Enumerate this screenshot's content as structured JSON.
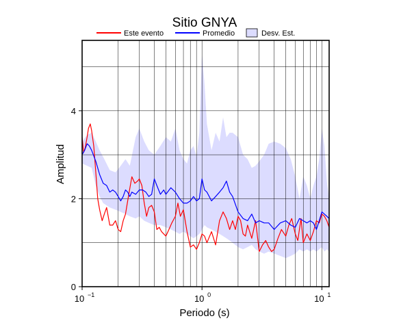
{
  "chart_data": {
    "type": "line",
    "title": "Sitio GNYA",
    "xlabel": "Periodo (s)",
    "ylabel": "Amplitud",
    "xscale": "log",
    "xlim": [
      0.1,
      11.5
    ],
    "ylim": [
      0,
      5.6
    ],
    "x_ticks": [
      {
        "value": 0.1,
        "base": "10",
        "exp": "−1"
      },
      {
        "value": 1,
        "base": "10",
        "exp": "0"
      },
      {
        "value": 10,
        "base": "10",
        "exp": "1"
      }
    ],
    "y_ticks": [
      0,
      2,
      4
    ],
    "grid": true,
    "legend_position": "top",
    "legend": [
      {
        "label": "Este evento",
        "kind": "line",
        "color": "#ff0000"
      },
      {
        "label": "Promedio",
        "kind": "line",
        "color": "#0000ff"
      },
      {
        "label": "Desv. Est.",
        "kind": "band",
        "color": "#dcdcff"
      }
    ],
    "series": [
      {
        "name": "Este evento",
        "color": "#ff0000",
        "x": [
          0.1,
          0.103,
          0.106,
          0.11,
          0.113,
          0.117,
          0.12,
          0.125,
          0.13,
          0.135,
          0.14,
          0.147,
          0.153,
          0.16,
          0.17,
          0.18,
          0.19,
          0.2,
          0.21,
          0.22,
          0.23,
          0.245,
          0.26,
          0.275,
          0.29,
          0.3,
          0.315,
          0.33,
          0.345,
          0.36,
          0.38,
          0.4,
          0.42,
          0.44,
          0.46,
          0.48,
          0.5,
          0.53,
          0.56,
          0.6,
          0.63,
          0.66,
          0.7,
          0.75,
          0.8,
          0.85,
          0.9,
          0.95,
          1.0,
          1.05,
          1.1,
          1.2,
          1.3,
          1.4,
          1.5,
          1.6,
          1.7,
          1.8,
          1.9,
          2.0,
          2.1,
          2.2,
          2.3,
          2.4,
          2.6,
          2.8,
          3.0,
          3.2,
          3.4,
          3.6,
          3.8,
          4.0,
          4.3,
          4.6,
          5.0,
          5.3,
          5.6,
          6.0,
          6.3,
          6.7,
          7.0,
          7.5,
          8.0,
          8.5,
          9.0,
          9.5,
          10.0,
          10.5,
          11.0,
          11.5
        ],
        "y": [
          3.4,
          3.05,
          3.15,
          3.4,
          3.6,
          3.7,
          3.55,
          3.2,
          2.6,
          2.0,
          1.75,
          1.5,
          1.65,
          1.8,
          1.4,
          1.4,
          1.5,
          1.3,
          1.25,
          1.5,
          1.65,
          2.1,
          2.5,
          2.35,
          2.4,
          2.45,
          2.3,
          1.9,
          1.6,
          1.8,
          1.85,
          1.7,
          1.3,
          1.35,
          1.25,
          1.2,
          1.15,
          1.3,
          1.45,
          1.6,
          1.9,
          1.6,
          1.75,
          1.25,
          0.9,
          0.95,
          0.85,
          1.0,
          1.2,
          1.15,
          1.0,
          1.25,
          0.95,
          1.5,
          1.7,
          1.55,
          1.3,
          1.5,
          1.3,
          1.6,
          1.5,
          1.2,
          1.15,
          1.4,
          1.1,
          1.5,
          0.8,
          0.95,
          1.05,
          0.9,
          0.8,
          0.85,
          1.1,
          1.3,
          1.15,
          1.4,
          1.55,
          1.2,
          1.05,
          1.55,
          1.0,
          1.2,
          1.05,
          1.25,
          1.5,
          1.45,
          1.65,
          1.6,
          1.5,
          1.35
        ]
      },
      {
        "name": "Promedio",
        "color": "#0000ff",
        "x": [
          0.1,
          0.105,
          0.11,
          0.115,
          0.12,
          0.13,
          0.14,
          0.15,
          0.16,
          0.17,
          0.18,
          0.19,
          0.2,
          0.21,
          0.22,
          0.23,
          0.24,
          0.25,
          0.26,
          0.28,
          0.3,
          0.32,
          0.34,
          0.36,
          0.38,
          0.4,
          0.42,
          0.45,
          0.48,
          0.5,
          0.55,
          0.6,
          0.65,
          0.7,
          0.75,
          0.8,
          0.85,
          0.9,
          0.95,
          1.0,
          1.05,
          1.1,
          1.2,
          1.3,
          1.4,
          1.5,
          1.6,
          1.7,
          1.8,
          2.0,
          2.2,
          2.4,
          2.6,
          2.8,
          3.0,
          3.3,
          3.6,
          4.0,
          4.5,
          5.0,
          5.5,
          6.0,
          6.5,
          7.0,
          7.5,
          8.0,
          8.5,
          9.0,
          9.5,
          10.0,
          10.5,
          11.0,
          11.5
        ],
        "y": [
          3.0,
          3.1,
          3.25,
          3.2,
          3.1,
          2.85,
          2.55,
          2.35,
          2.3,
          2.15,
          2.2,
          2.15,
          2.05,
          1.95,
          2.05,
          2.2,
          2.15,
          2.05,
          2.15,
          2.1,
          2.2,
          2.2,
          2.15,
          2.05,
          2.1,
          2.45,
          2.3,
          2.1,
          2.2,
          2.1,
          2.25,
          2.15,
          2.0,
          1.9,
          1.9,
          1.95,
          2.05,
          1.95,
          2.0,
          2.45,
          2.2,
          2.15,
          1.95,
          2.05,
          2.15,
          2.25,
          2.4,
          2.15,
          2.05,
          1.7,
          1.55,
          1.5,
          1.65,
          1.45,
          1.5,
          1.45,
          1.45,
          1.3,
          1.45,
          1.5,
          1.4,
          1.35,
          1.55,
          1.5,
          1.45,
          1.5,
          1.45,
          1.3,
          1.5,
          1.7,
          1.65,
          1.6,
          1.55
        ]
      }
    ],
    "band": {
      "name": "Desv. Est.",
      "color": "#dcdcff",
      "x": [
        0.1,
        0.11,
        0.12,
        0.13,
        0.14,
        0.15,
        0.17,
        0.19,
        0.21,
        0.23,
        0.25,
        0.28,
        0.3,
        0.33,
        0.36,
        0.4,
        0.45,
        0.5,
        0.55,
        0.6,
        0.65,
        0.7,
        0.75,
        0.8,
        0.85,
        0.9,
        0.95,
        1.0,
        1.05,
        1.1,
        1.2,
        1.3,
        1.4,
        1.5,
        1.6,
        1.7,
        1.8,
        2.0,
        2.2,
        2.4,
        2.6,
        2.8,
        3.0,
        3.3,
        3.6,
        4.0,
        4.5,
        5.0,
        5.5,
        6.0,
        6.5,
        7.0,
        7.5,
        8.0,
        8.5,
        9.0,
        9.5,
        10.0,
        10.5,
        11.0,
        11.5
      ],
      "upper": [
        3.3,
        3.45,
        3.5,
        3.3,
        3.1,
        2.95,
        2.65,
        2.6,
        2.75,
        2.9,
        2.75,
        3.4,
        3.6,
        3.3,
        3.1,
        3.0,
        3.2,
        3.4,
        3.3,
        3.6,
        3.1,
        2.9,
        2.8,
        3.1,
        3.2,
        2.95,
        3.5,
        5.3,
        4.6,
        3.7,
        3.1,
        3.5,
        3.3,
        3.85,
        3.4,
        3.5,
        3.5,
        3.4,
        3.0,
        2.9,
        2.7,
        2.75,
        2.85,
        3.0,
        3.25,
        3.3,
        3.25,
        3.15,
        2.9,
        2.5,
        2.0,
        2.5,
        2.3,
        2.0,
        2.3,
        2.5,
        2.9,
        3.6,
        3.2,
        2.4,
        2.0
      ],
      "lower": [
        2.8,
        2.75,
        2.7,
        2.3,
        2.05,
        1.9,
        1.8,
        1.75,
        1.7,
        1.65,
        1.6,
        1.55,
        1.6,
        1.5,
        1.45,
        1.4,
        1.4,
        1.35,
        1.3,
        1.25,
        1.2,
        1.25,
        1.2,
        1.15,
        1.1,
        1.15,
        1.2,
        1.3,
        1.4,
        1.35,
        1.3,
        1.25,
        1.2,
        1.15,
        1.1,
        1.05,
        1.0,
        0.9,
        0.85,
        0.9,
        0.95,
        0.85,
        0.8,
        0.75,
        0.8,
        0.75,
        0.7,
        0.65,
        0.7,
        0.75,
        0.85,
        0.8,
        0.85,
        0.8,
        0.85,
        0.8,
        0.85,
        0.9,
        0.8,
        0.85,
        0.8
      ]
    }
  }
}
